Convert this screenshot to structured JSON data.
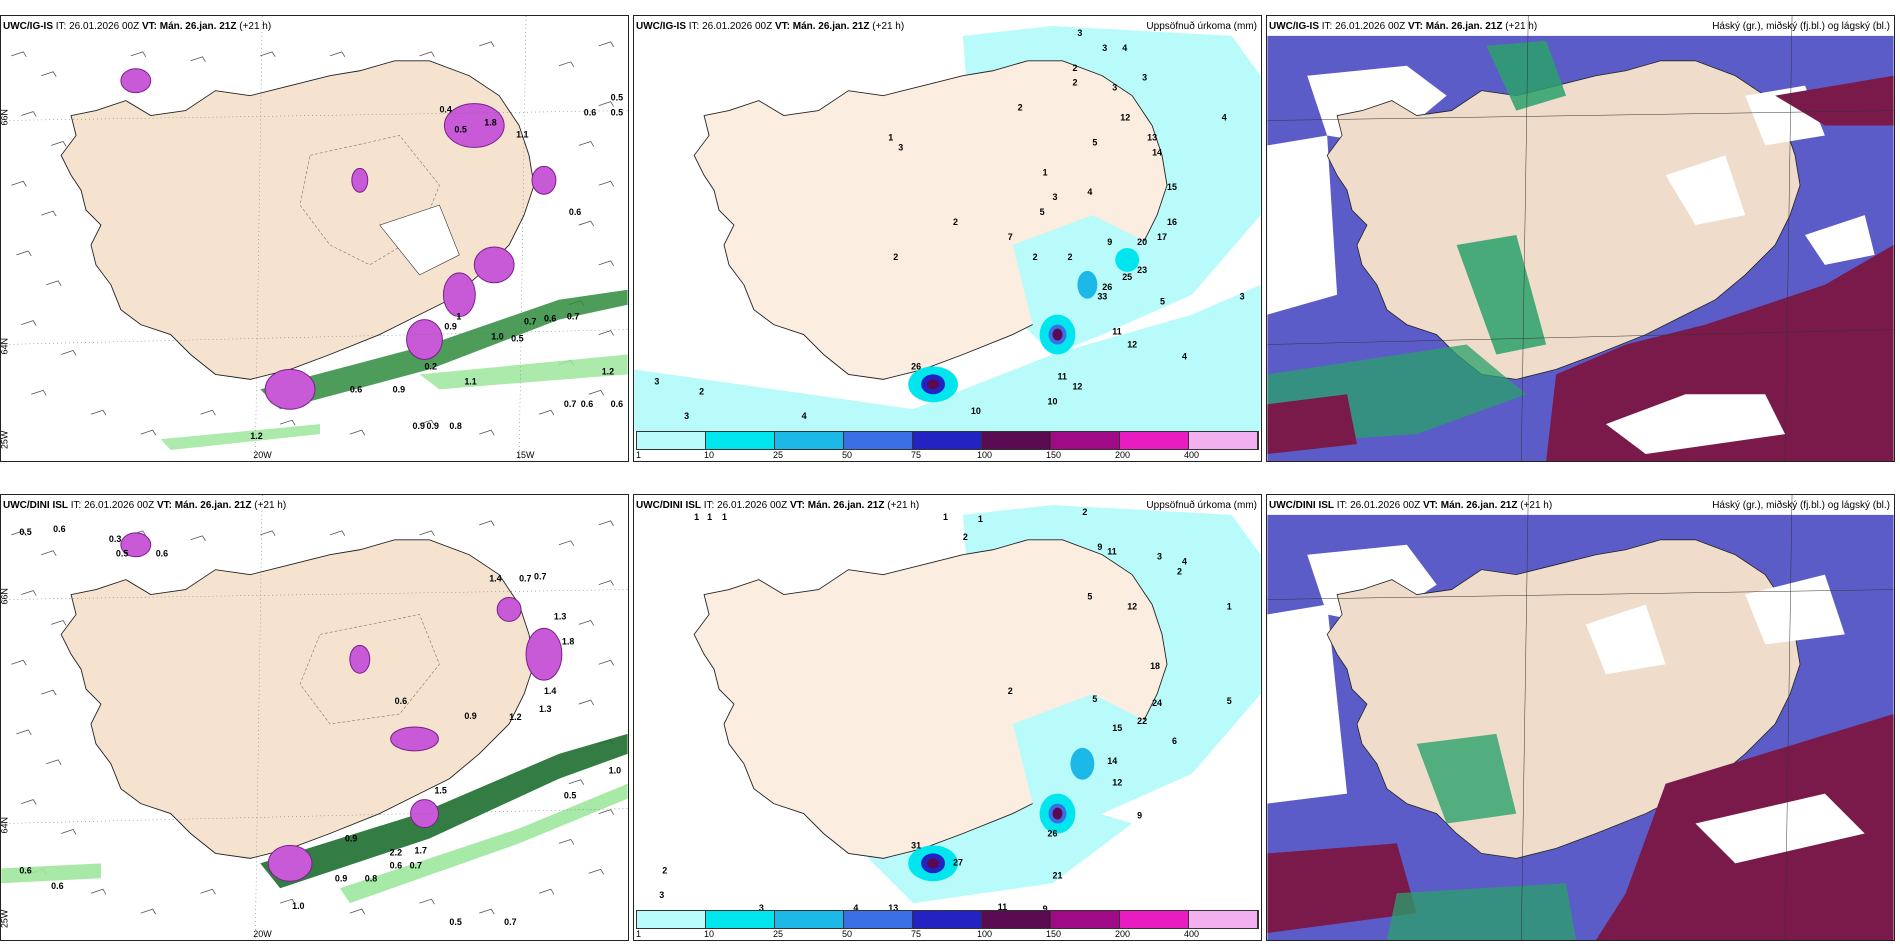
{
  "panels": {
    "tl": {
      "model": "UWC/IG-IS",
      "it": "IT: 26.01.2026 00Z",
      "vt": "VT: Mán. 26.jan. 21Z",
      "lead": "(+21 h)"
    },
    "tm": {
      "model": "UWC/IG-IS",
      "it": "IT: 26.01.2026 00Z",
      "vt": "VT: Mán. 26.jan. 21Z",
      "lead": "(+21 h)",
      "right": "Uppsöfnuð úrkoma (mm)"
    },
    "tr": {
      "model": "UWC/IG-IS",
      "it": "IT: 26.01.2026 00Z",
      "vt": "VT: Mán. 26.jan. 21Z",
      "lead": "(+21 h)",
      "right": "Háský (gr.), miðský (fj.bl.) og lágský (bl.)"
    },
    "bl": {
      "model": "UWC/DINI ISL",
      "it": "IT: 26.01.2026 00Z",
      "vt": "VT: Mán. 26.jan. 21Z",
      "lead": "(+21 h)"
    },
    "bm": {
      "model": "UWC/DINI ISL",
      "it": "IT: 26.01.2026 00Z",
      "vt": "VT: Mán. 26.jan. 21Z",
      "lead": "(+21 h)",
      "right": "Uppsöfnuð úrkoma (mm)"
    },
    "br": {
      "model": "UWC/DINI ISL",
      "it": "IT: 26.01.2026 00Z",
      "vt": "VT: Mán. 26.jan. 21Z",
      "lead": "(+21 h)",
      "right": "Háský (gr.), miðský (fj.bl.) og lágský (bl.)"
    }
  },
  "axis": {
    "lon20": "20W",
    "lon15": "15W",
    "lon25": "25W",
    "lat66": "66N",
    "lat64": "64N"
  },
  "colorbar": {
    "ticks": [
      "1",
      "10",
      "25",
      "50",
      "75",
      "100",
      "150",
      "200",
      "400"
    ],
    "colors": [
      "#b9fbfb",
      "#00e5ee",
      "#1cb8e8",
      "#3b6fe6",
      "#2323c4",
      "#5a0a50",
      "#a00a86",
      "#e81cc0",
      "#f2b0f0"
    ]
  },
  "tl_labels": [
    "0.5",
    "0.6",
    "0.5",
    "0.4",
    "0.5",
    "1.8",
    "1.1",
    "0.6",
    "1",
    "0.2",
    "0.9",
    "1.0",
    "0.5",
    "0.7",
    "0.6",
    "0.7",
    "1.2",
    "1.1",
    "0.6",
    "0.9",
    "0.7",
    "0.6",
    "0.6",
    "0.9",
    "0.9",
    "0.8",
    "1.2"
  ],
  "bl_labels": [
    "0.5",
    "0.6",
    "0.3",
    "0.5",
    "0.6",
    "0.7",
    "1.4",
    "0.7",
    "1.3",
    "1.8",
    "1.4",
    "1.3",
    "1.2",
    "0.6",
    "0.9",
    "1.5",
    "0.5",
    "0.9",
    "2.2",
    "1.7",
    "0.7",
    "0.6",
    "0.9",
    "0.8",
    "1.0",
    "0.6",
    "0.6",
    "1.0",
    "0.5",
    "0.7"
  ],
  "tm_labels": [
    "3",
    "3",
    "4",
    "2",
    "2",
    "3",
    "3",
    "1",
    "3",
    "2",
    "1",
    "2",
    "4",
    "12",
    "5",
    "13",
    "14",
    "15",
    "16",
    "17",
    "20",
    "23",
    "4",
    "3",
    "2",
    "5",
    "7",
    "2",
    "9",
    "2",
    "25",
    "26",
    "33",
    "11",
    "12",
    "5",
    "3",
    "4",
    "10",
    "11",
    "12",
    "10",
    "26",
    "4",
    "2",
    "3",
    "3"
  ],
  "bm_labels": [
    "1",
    "1",
    "1",
    "1",
    "1",
    "2",
    "2",
    "9",
    "11",
    "3",
    "4",
    "2",
    "1",
    "5",
    "12",
    "18",
    "24",
    "22",
    "15",
    "14",
    "12",
    "9",
    "5",
    "6",
    "26",
    "21",
    "13",
    "27",
    "11",
    "9",
    "31",
    "5",
    "4",
    "3",
    "2",
    "2",
    "3"
  ]
}
